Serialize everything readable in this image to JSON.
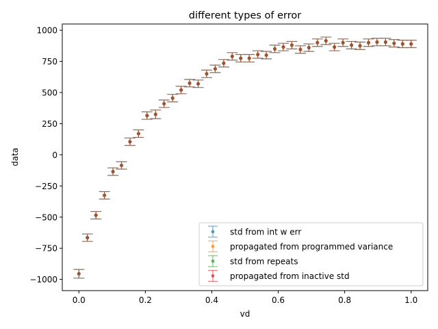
{
  "chart_data": {
    "type": "scatter",
    "title": "different types of error",
    "xlabel": "vd",
    "ylabel": "data",
    "xlim": [
      -0.05,
      1.05
    ],
    "ylim": [
      -1090,
      1050
    ],
    "xticks": [
      0.0,
      0.2,
      0.4,
      0.6,
      0.8,
      1.0
    ],
    "xtick_labels": [
      "0.0",
      "0.2",
      "0.4",
      "0.6",
      "0.8",
      "1.0"
    ],
    "yticks": [
      -1000,
      -750,
      -500,
      -250,
      0,
      250,
      500,
      750,
      1000
    ],
    "ytick_labels": [
      "−1000",
      "−750",
      "−500",
      "−250",
      "0",
      "250",
      "500",
      "750",
      "1000"
    ],
    "grid": false,
    "legend_position": "lower right",
    "x": [
      0.0,
      0.0256,
      0.0513,
      0.0769,
      0.1026,
      0.1282,
      0.1538,
      0.1795,
      0.2051,
      0.2308,
      0.2564,
      0.2821,
      0.3077,
      0.3333,
      0.359,
      0.3846,
      0.4103,
      0.4359,
      0.4615,
      0.4872,
      0.5128,
      0.5385,
      0.5641,
      0.5897,
      0.6154,
      0.641,
      0.6667,
      0.6923,
      0.7179,
      0.7436,
      0.7692,
      0.7949,
      0.8205,
      0.8462,
      0.8718,
      0.8974,
      0.9231,
      0.9487,
      0.9744,
      1.0
    ],
    "y": [
      -955,
      -665,
      -485,
      -325,
      -135,
      -85,
      105,
      170,
      315,
      325,
      410,
      455,
      520,
      575,
      570,
      650,
      690,
      735,
      790,
      775,
      775,
      805,
      800,
      850,
      865,
      880,
      845,
      860,
      900,
      915,
      865,
      900,
      880,
      875,
      900,
      905,
      905,
      895,
      890,
      890
    ],
    "err": [
      35,
      30,
      30,
      30,
      30,
      30,
      30,
      30,
      30,
      35,
      30,
      30,
      30,
      30,
      30,
      30,
      30,
      30,
      30,
      30,
      30,
      30,
      30,
      30,
      30,
      30,
      30,
      30,
      30,
      30,
      30,
      30,
      30,
      30,
      30,
      30,
      30,
      30,
      30,
      30
    ],
    "series": [
      {
        "name": "std from int w err",
        "color": "#1f77b4"
      },
      {
        "name": "propagated from programmed variance",
        "color": "#ff7f0e"
      },
      {
        "name": "std from repeats",
        "color": "#2ca02c"
      },
      {
        "name": "propagated from inactive std",
        "color": "#d62728"
      }
    ],
    "visible_overlay_color": "#a0522d"
  }
}
